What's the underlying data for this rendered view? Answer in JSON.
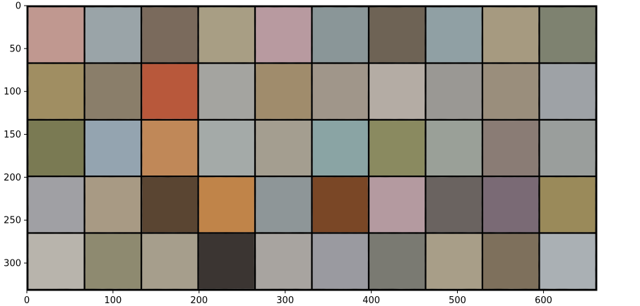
{
  "chart_data": {
    "type": "image",
    "title": "",
    "xlabel": "",
    "ylabel": "",
    "xlim": [
      0,
      662
    ],
    "ylim": [
      332,
      0
    ],
    "x_ticks": [
      0,
      100,
      200,
      300,
      400,
      500,
      600
    ],
    "y_ticks": [
      0,
      50,
      100,
      150,
      200,
      250,
      300
    ],
    "grid": false,
    "image_grid": {
      "rows": 5,
      "cols": 10,
      "cell_size": 64,
      "padding": 2,
      "separator_color": "#000000"
    },
    "tile_colors": [
      [
        "#c09890",
        "#9aa4a8",
        "#7a6a5c",
        "#a89e84",
        "#b89aa0",
        "#8a9698",
        "#6e6454",
        "#90a0a4",
        "#a69a80",
        "#7e8270"
      ],
      [
        "#a08e62",
        "#8a7e6a",
        "#b8583a",
        "#a4a4a0",
        "#a08c6c",
        "#a0968a",
        "#b4aca4",
        "#9a9894",
        "#9a8e7c",
        "#9ea2a6"
      ],
      [
        "#7a7a52",
        "#94a4b0",
        "#c08858",
        "#a4aaa8",
        "#a49e90",
        "#8aa4a4",
        "#8a8a60",
        "#9aa098",
        "#8a7c74",
        "#9a9e9c"
      ],
      [
        "#a0a0a4",
        "#a89a84",
        "#5a4430",
        "#c0844a",
        "#8e9698",
        "#7a4628",
        "#b49aa0",
        "#6a6460",
        "#7a6a74",
        "#9a8a5a"
      ],
      [
        "#b8b4ac",
        "#8e8a70",
        "#a69e8c",
        "#3a3430",
        "#a8a4a0",
        "#9a9aa0",
        "#7a7a72",
        "#a89e88",
        "#7e705c",
        "#aab0b4"
      ]
    ]
  }
}
